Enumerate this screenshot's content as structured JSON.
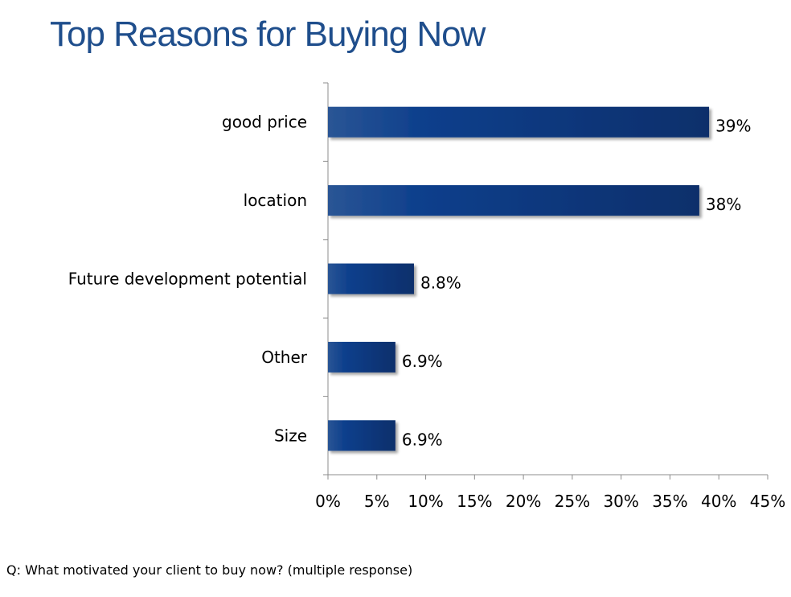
{
  "title": "Top Reasons for Buying Now",
  "footnote": "Q: What motivated your client to buy now? (multiple response)",
  "colors": {
    "title": "#1f4e8c",
    "bar_dark": "#0a2f6b",
    "bar_mid": "#0d3f8c",
    "bar_light": "#2a5595"
  },
  "chart_data": {
    "type": "bar",
    "orientation": "horizontal",
    "title": "Top Reasons for Buying Now",
    "categories": [
      "good price",
      "location",
      "Future development potential",
      "Other",
      "Size"
    ],
    "values": [
      39,
      38,
      8.8,
      6.9,
      6.9
    ],
    "value_labels": [
      "39%",
      "38%",
      "8.8%",
      "6.9%",
      "6.9%"
    ],
    "xlim": [
      0,
      45
    ],
    "xticks": [
      0,
      5,
      10,
      15,
      20,
      25,
      30,
      35,
      40,
      45
    ],
    "xtick_labels": [
      "0%",
      "5%",
      "10%",
      "15%",
      "20%",
      "25%",
      "30%",
      "35%",
      "40%",
      "45%"
    ],
    "xlabel": "",
    "ylabel": "",
    "grid": false,
    "legend": "none"
  }
}
